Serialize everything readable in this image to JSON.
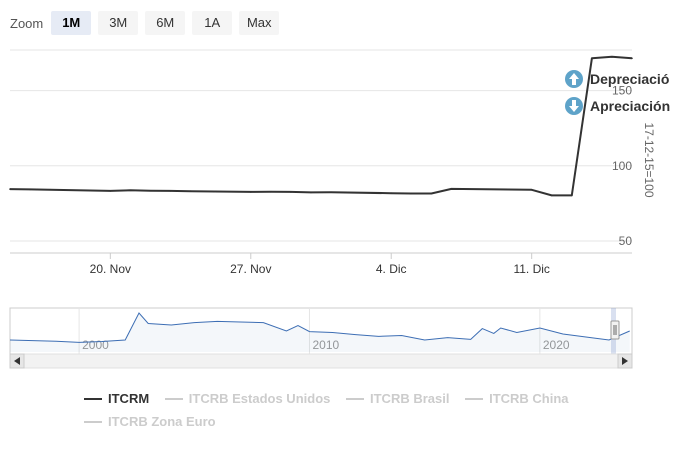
{
  "zoom": {
    "label": "Zoom",
    "buttons": [
      {
        "label": "1M",
        "active": true
      },
      {
        "label": "3M",
        "active": false
      },
      {
        "label": "6M",
        "active": false
      },
      {
        "label": "1A",
        "active": false
      },
      {
        "label": "Max",
        "active": false
      }
    ]
  },
  "flags": {
    "up_label": "Depreciació",
    "down_label": "Apreciación",
    "up_color": "#5ea3c9",
    "down_color": "#5ea3c9"
  },
  "chart_data": {
    "type": "line",
    "ylabel": "17-12-15=100",
    "ylim": [
      42,
      177
    ],
    "yticks": [
      50,
      100,
      150
    ],
    "x_start": "2023-11-15",
    "x_end": "2023-12-16",
    "xticks": [
      {
        "date": "2023-11-20",
        "label": "20. Nov"
      },
      {
        "date": "2023-11-27",
        "label": "27. Nov"
      },
      {
        "date": "2023-12-04",
        "label": "4. Dic"
      },
      {
        "date": "2023-12-11",
        "label": "11. Dic"
      }
    ],
    "series": [
      {
        "name": "ITCRM",
        "color": "#333333",
        "x": [
          "2023-11-15",
          "2023-11-16",
          "2023-11-17",
          "2023-11-20",
          "2023-11-21",
          "2023-11-22",
          "2023-11-23",
          "2023-11-24",
          "2023-11-27",
          "2023-11-28",
          "2023-11-29",
          "2023-11-30",
          "2023-12-01",
          "2023-12-04",
          "2023-12-05",
          "2023-12-06",
          "2023-12-07",
          "2023-12-11",
          "2023-12-12",
          "2023-12-13",
          "2023-12-14",
          "2023-12-15",
          "2023-12-16"
        ],
        "values": [
          84.5,
          84.3,
          84.1,
          83.3,
          83.7,
          83.4,
          83.3,
          83.1,
          82.6,
          82.7,
          82.6,
          82.3,
          82.4,
          81.8,
          81.6,
          81.6,
          84.6,
          84.0,
          80.3,
          80.3,
          171.5,
          172.5,
          171.5
        ]
      }
    ],
    "navigator": {
      "x_start_year": 1997,
      "x_end_year": 2024,
      "year_labels": [
        2000,
        2010,
        2020
      ],
      "ylim": [
        60,
        200
      ],
      "years": [
        1997,
        1998,
        1999,
        2000,
        2001,
        2002,
        2002.3,
        2002.6,
        2003,
        2004,
        2005,
        2006,
        2007,
        2008,
        2009,
        2009.5,
        2010,
        2011,
        2012,
        2013,
        2014,
        2015,
        2016,
        2017,
        2017.5,
        2018,
        2018.3,
        2019,
        2020,
        2021,
        2022,
        2023,
        2023.9
      ],
      "values": [
        100,
        98,
        96,
        92,
        95,
        100,
        145,
        190,
        155,
        150,
        158,
        162,
        160,
        158,
        130,
        148,
        128,
        125,
        118,
        112,
        115,
        100,
        108,
        102,
        138,
        122,
        140,
        125,
        140,
        120,
        110,
        100,
        130
      ]
    },
    "legend": [
      {
        "name": "ITCRM",
        "color": "#333333",
        "visible": true
      },
      {
        "name": "ITCRB Estados Unidos",
        "color": "#cccccc",
        "visible": false
      },
      {
        "name": "ITCRB Brasil",
        "color": "#cccccc",
        "visible": false
      },
      {
        "name": "ITCRB China",
        "color": "#cccccc",
        "visible": false
      },
      {
        "name": "ITCRB Zona Euro",
        "color": "#cccccc",
        "visible": false
      }
    ]
  }
}
